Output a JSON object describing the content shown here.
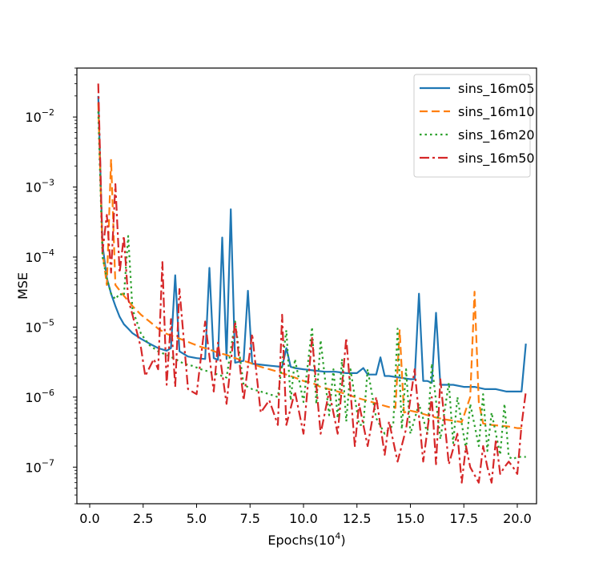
{
  "chart_data": {
    "type": "line",
    "title": "",
    "xlabel": "Epochs(10^4)",
    "xlabel_base": "Epochs(10",
    "xlabel_exp": "4",
    "xlabel_close": ")",
    "ylabel": "MSE",
    "xscale": "linear",
    "yscale": "log",
    "xlim": [
      -0.6,
      20.9
    ],
    "ylim": [
      3e-08,
      0.05
    ],
    "xticks": [
      0,
      2.5,
      5,
      7.5,
      10,
      12.5,
      15,
      17.5,
      20
    ],
    "xtick_labels": [
      "0.0",
      "2.5",
      "5.0",
      "7.5",
      "10.0",
      "12.5",
      "15.0",
      "17.5",
      "20.0"
    ],
    "yticks": [
      {
        "value": 1e-07,
        "mantissa": "10",
        "exp": "−7"
      },
      {
        "value": 1e-06,
        "mantissa": "10",
        "exp": "−6"
      },
      {
        "value": 1e-05,
        "mantissa": "10",
        "exp": "−5"
      },
      {
        "value": 0.0001,
        "mantissa": "10",
        "exp": "−4"
      },
      {
        "value": 0.001,
        "mantissa": "10",
        "exp": "−3"
      },
      {
        "value": 0.01,
        "mantissa": "10",
        "exp": "−2"
      }
    ],
    "legend_position": "top-right",
    "series": [
      {
        "name": "sins_16m05",
        "color": "#1f77b4",
        "style": "solid",
        "x": [
          0.4,
          0.6,
          0.8,
          1.0,
          1.2,
          1.4,
          1.6,
          1.8,
          2.0,
          2.4,
          2.8,
          3.2,
          3.6,
          3.8,
          4.0,
          4.2,
          4.6,
          5.0,
          5.4,
          5.6,
          5.8,
          6.0,
          6.2,
          6.4,
          6.6,
          6.8,
          7.0,
          7.2,
          7.4,
          7.6,
          8.0,
          8.5,
          9.0,
          9.2,
          9.4,
          9.6,
          10.0,
          10.5,
          11.0,
          11.5,
          12.0,
          12.5,
          12.8,
          13.0,
          13.4,
          13.6,
          13.8,
          14.0,
          14.5,
          15.0,
          15.2,
          15.4,
          15.6,
          15.8,
          16.0,
          16.2,
          16.4,
          16.8,
          17.0,
          17.5,
          18.0,
          18.5,
          19.0,
          19.5,
          20.0,
          20.2,
          20.4
        ],
        "y": [
          0.02,
          0.00015,
          5e-05,
          3e-05,
          2e-05,
          1.4e-05,
          1.1e-05,
          9.5e-06,
          8.2e-06,
          6.8e-06,
          5.8e-06,
          5e-06,
          4.6e-06,
          5e-06,
          5.5e-05,
          4.5e-06,
          3.8e-06,
          3.6e-06,
          3.5e-06,
          7e-05,
          3.6e-06,
          3.4e-06,
          0.00019,
          3.5e-06,
          0.00048,
          3.1e-06,
          3.2e-06,
          3.3e-06,
          3.3e-05,
          3e-06,
          2.9e-06,
          2.8e-06,
          2.7e-06,
          5e-06,
          2.7e-06,
          2.6e-06,
          2.5e-06,
          2.4e-06,
          2.3e-06,
          2.3e-06,
          2.2e-06,
          2.2e-06,
          2.6e-06,
          2.1e-06,
          2.1e-06,
          3.7e-06,
          2e-06,
          2e-06,
          1.9e-06,
          1.8e-06,
          1.8e-06,
          3e-05,
          1.7e-06,
          1.7e-06,
          1.6e-06,
          1.6e-05,
          1.5e-06,
          1.5e-06,
          1.5e-06,
          1.4e-06,
          1.4e-06,
          1.3e-06,
          1.3e-06,
          1.2e-06,
          1.2e-06,
          1.2e-06,
          5.8e-06
        ]
      },
      {
        "name": "sins_16m10",
        "color": "#ff7f0e",
        "style": "dashed",
        "x": [
          0.4,
          0.6,
          0.8,
          1.0,
          1.2,
          1.6,
          2.0,
          2.4,
          2.8,
          3.2,
          3.6,
          4.0,
          4.4,
          4.8,
          5.2,
          5.6,
          6.0,
          6.4,
          6.8,
          7.2,
          7.6,
          8.0,
          8.4,
          8.8,
          9.2,
          9.6,
          10.0,
          10.4,
          10.8,
          11.2,
          11.6,
          12.0,
          12.4,
          12.8,
          13.2,
          13.6,
          14.0,
          14.3,
          14.5,
          14.7,
          15.0,
          15.4,
          15.8,
          16.2,
          16.6,
          17.0,
          17.4,
          17.8,
          18.0,
          18.2,
          18.4,
          18.8,
          19.2,
          19.6,
          20.0,
          20.4
        ],
        "y": [
          0.016,
          0.00012,
          4e-05,
          0.0025,
          4e-05,
          2.8e-05,
          2e-05,
          1.5e-05,
          1.2e-05,
          9.5e-06,
          8e-06,
          7.2e-06,
          6.5e-06,
          5.8e-06,
          5.2e-06,
          4.8e-06,
          4.3e-06,
          4e-06,
          3.6e-06,
          3.3e-06,
          3e-06,
          2.7e-06,
          2.5e-06,
          2.3e-06,
          2.1e-06,
          1.9e-06,
          1.7e-06,
          1.6e-06,
          1.4e-06,
          1.3e-06,
          1.2e-06,
          1.1e-06,
          1e-06,
          9.2e-07,
          8.5e-07,
          7.8e-07,
          7.2e-07,
          7e-07,
          9e-06,
          6e-07,
          6.4e-07,
          6e-07,
          5.5e-07,
          5.1e-07,
          4.8e-07,
          4.6e-07,
          4.4e-07,
          1e-06,
          3.2e-05,
          8.5e-07,
          4.2e-07,
          4e-07,
          3.9e-07,
          3.8e-07,
          3.6e-07,
          3.6e-07
        ]
      },
      {
        "name": "sins_16m20",
        "color": "#2ca02c",
        "style": "dotted",
        "x": [
          0.4,
          0.6,
          0.8,
          1.0,
          1.2,
          1.4,
          1.6,
          1.8,
          2.0,
          2.4,
          2.8,
          3.2,
          3.6,
          4.0,
          4.4,
          4.8,
          5.2,
          5.6,
          6.0,
          6.4,
          6.8,
          7.2,
          7.6,
          8.0,
          8.4,
          8.8,
          9.2,
          9.4,
          9.6,
          10.0,
          10.4,
          10.6,
          10.8,
          11.2,
          11.4,
          11.6,
          11.8,
          12.0,
          12.2,
          12.6,
          12.8,
          13.0,
          13.4,
          13.8,
          14.2,
          14.4,
          14.6,
          14.8,
          15.0,
          15.4,
          15.8,
          16.0,
          16.4,
          16.8,
          17.0,
          17.2,
          17.6,
          17.8,
          18.2,
          18.4,
          18.6,
          18.8,
          19.2,
          19.4,
          19.6,
          19.8,
          20.0,
          20.4
        ],
        "y": [
          0.012,
          0.0001,
          5e-05,
          3e-05,
          2.5e-05,
          3e-05,
          2.8e-05,
          0.0002,
          1.8e-05,
          8e-06,
          5.5e-06,
          4.5e-06,
          4e-06,
          3.5e-06,
          3e-06,
          2.8e-06,
          2.5e-06,
          2.3e-06,
          2.1e-06,
          1.9e-06,
          1.2e-05,
          1.5e-06,
          1.3e-06,
          1.2e-06,
          1.1e-06,
          1e-06,
          9e-06,
          9e-07,
          3.5e-06,
          8.5e-07,
          1e-05,
          8e-07,
          6.5e-06,
          5.5e-07,
          2.5e-06,
          5e-07,
          3.5e-06,
          4.5e-07,
          2.5e-06,
          4e-07,
          4e-07,
          2.5e-06,
          5e-07,
          3e-07,
          4e-07,
          9.5e-06,
          3.5e-07,
          2.5e-06,
          3e-07,
          8e-07,
          3e-07,
          3e-06,
          2.5e-07,
          1.6e-06,
          2.2e-07,
          1e-06,
          1.8e-07,
          8e-07,
          2e-07,
          1.1e-06,
          1.7e-07,
          6e-07,
          1.5e-07,
          8e-07,
          1.4e-07,
          1.3e-07,
          1.4e-07,
          1.4e-07
        ]
      },
      {
        "name": "sins_16m50",
        "color": "#d62728",
        "style": "dashdot",
        "x": [
          0.4,
          0.6,
          0.8,
          1.0,
          1.2,
          1.4,
          1.6,
          1.8,
          2.0,
          2.4,
          2.6,
          3.0,
          3.2,
          3.4,
          3.6,
          3.8,
          4.0,
          4.2,
          4.6,
          5.0,
          5.4,
          5.8,
          6.0,
          6.4,
          6.8,
          7.2,
          7.6,
          8.0,
          8.4,
          8.8,
          9.0,
          9.2,
          9.6,
          10.0,
          10.4,
          10.8,
          11.2,
          11.6,
          12.0,
          12.4,
          12.6,
          13.0,
          13.4,
          13.8,
          14.0,
          14.4,
          14.8,
          15.2,
          15.6,
          16.0,
          16.2,
          16.4,
          16.8,
          17.2,
          17.4,
          17.6,
          17.8,
          18.2,
          18.4,
          18.6,
          18.8,
          19.0,
          19.2,
          19.4,
          19.6,
          19.8,
          20.0,
          20.2,
          20.4
        ],
        "y": [
          0.03,
          0.00012,
          0.0004,
          6e-05,
          0.0011,
          6e-05,
          0.0002,
          2.5e-05,
          1.5e-05,
          5e-06,
          2e-06,
          3.5e-06,
          2.5e-06,
          8.5e-05,
          1.5e-06,
          1.3e-05,
          1.4e-06,
          3.5e-05,
          1.3e-06,
          1.1e-06,
          1.2e-05,
          1.2e-06,
          6e-06,
          8e-07,
          1.2e-05,
          9e-07,
          8e-06,
          6e-07,
          9e-07,
          4e-07,
          1.5e-05,
          4e-07,
          1.2e-06,
          3e-07,
          7e-06,
          3e-07,
          1.2e-06,
          3e-07,
          7e-06,
          2e-07,
          8e-07,
          2e-07,
          1e-06,
          1.5e-07,
          4.5e-07,
          1.2e-07,
          3.5e-07,
          2.5e-06,
          1.2e-07,
          1e-06,
          1.1e-07,
          1.8e-06,
          1.1e-07,
          3e-07,
          6e-08,
          2e-07,
          1e-07,
          6e-08,
          2e-07,
          1e-07,
          6e-08,
          2.5e-07,
          8e-08,
          1e-07,
          1.2e-07,
          1e-07,
          8e-08,
          4e-07,
          1.2e-06
        ]
      }
    ]
  }
}
